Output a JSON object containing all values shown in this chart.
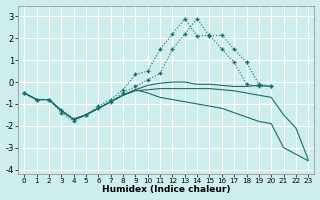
{
  "title": "",
  "xlabel": "Humidex (Indice chaleur)",
  "background_color": "#ceeeed",
  "grid_color": "#ffffff",
  "line_color": "#1a6b6b",
  "xlim": [
    -0.5,
    23.5
  ],
  "ylim": [
    -4.2,
    3.5
  ],
  "yticks": [
    -4,
    -3,
    -2,
    -1,
    0,
    1,
    2,
    3
  ],
  "xticks": [
    0,
    1,
    2,
    3,
    4,
    5,
    6,
    7,
    8,
    9,
    10,
    11,
    12,
    13,
    14,
    15,
    16,
    17,
    18,
    19,
    20,
    21,
    22,
    23
  ],
  "line1_x": [
    0,
    1,
    2,
    3,
    4,
    5,
    6,
    7,
    8,
    9,
    10,
    11,
    12,
    13,
    14,
    15,
    16,
    17,
    18,
    19,
    20
  ],
  "line1_y": [
    -0.5,
    -0.8,
    -0.8,
    -1.4,
    -1.8,
    -1.5,
    -1.1,
    -0.8,
    -0.35,
    0.35,
    0.5,
    1.5,
    2.2,
    2.9,
    2.1,
    2.15,
    1.5,
    0.9,
    -0.1,
    -0.2,
    -0.2
  ],
  "line2_x": [
    0,
    1,
    2,
    3,
    4,
    5,
    6,
    7,
    8,
    9,
    10,
    11,
    12,
    13,
    14,
    15,
    16,
    17,
    18,
    19,
    20
  ],
  "line2_y": [
    -0.5,
    -0.8,
    -0.8,
    -1.3,
    -1.7,
    -1.5,
    -1.2,
    -0.9,
    -0.5,
    -0.2,
    0.1,
    0.4,
    1.5,
    2.2,
    2.9,
    2.1,
    2.15,
    1.5,
    0.9,
    -0.1,
    -0.2
  ],
  "line3_x": [
    0,
    1,
    2,
    3,
    4,
    5,
    6,
    7,
    8,
    9,
    10,
    11,
    12,
    13,
    14,
    15,
    16,
    17,
    18,
    19,
    20
  ],
  "line3_y": [
    -0.5,
    -0.8,
    -0.8,
    -1.3,
    -1.7,
    -1.5,
    -1.2,
    -0.9,
    -0.6,
    -0.35,
    -0.15,
    -0.05,
    0.0,
    0.0,
    -0.1,
    -0.1,
    -0.15,
    -0.2,
    -0.2,
    -0.15,
    -0.2
  ],
  "line4_x": [
    0,
    1,
    2,
    3,
    4,
    5,
    6,
    7,
    8,
    9,
    10,
    11,
    12,
    13,
    14,
    15,
    16,
    17,
    18,
    19,
    20,
    21,
    22,
    23
  ],
  "line4_y": [
    -0.5,
    -0.8,
    -0.8,
    -1.3,
    -1.7,
    -1.5,
    -1.2,
    -0.9,
    -0.6,
    -0.35,
    -0.5,
    -0.7,
    -0.8,
    -0.9,
    -1.0,
    -1.1,
    -1.2,
    -1.4,
    -1.6,
    -1.8,
    -1.9,
    -3.0,
    -3.3,
    -3.6
  ],
  "line5_x": [
    0,
    1,
    2,
    3,
    4,
    5,
    6,
    7,
    8,
    9,
    10,
    11,
    12,
    13,
    14,
    15,
    16,
    17,
    18,
    19,
    20,
    21,
    22,
    23
  ],
  "line5_y": [
    -0.5,
    -0.8,
    -0.8,
    -1.3,
    -1.7,
    -1.5,
    -1.2,
    -0.9,
    -0.6,
    -0.4,
    -0.35,
    -0.3,
    -0.3,
    -0.3,
    -0.3,
    -0.3,
    -0.35,
    -0.4,
    -0.5,
    -0.6,
    -0.7,
    -1.5,
    -2.1,
    -3.55
  ]
}
